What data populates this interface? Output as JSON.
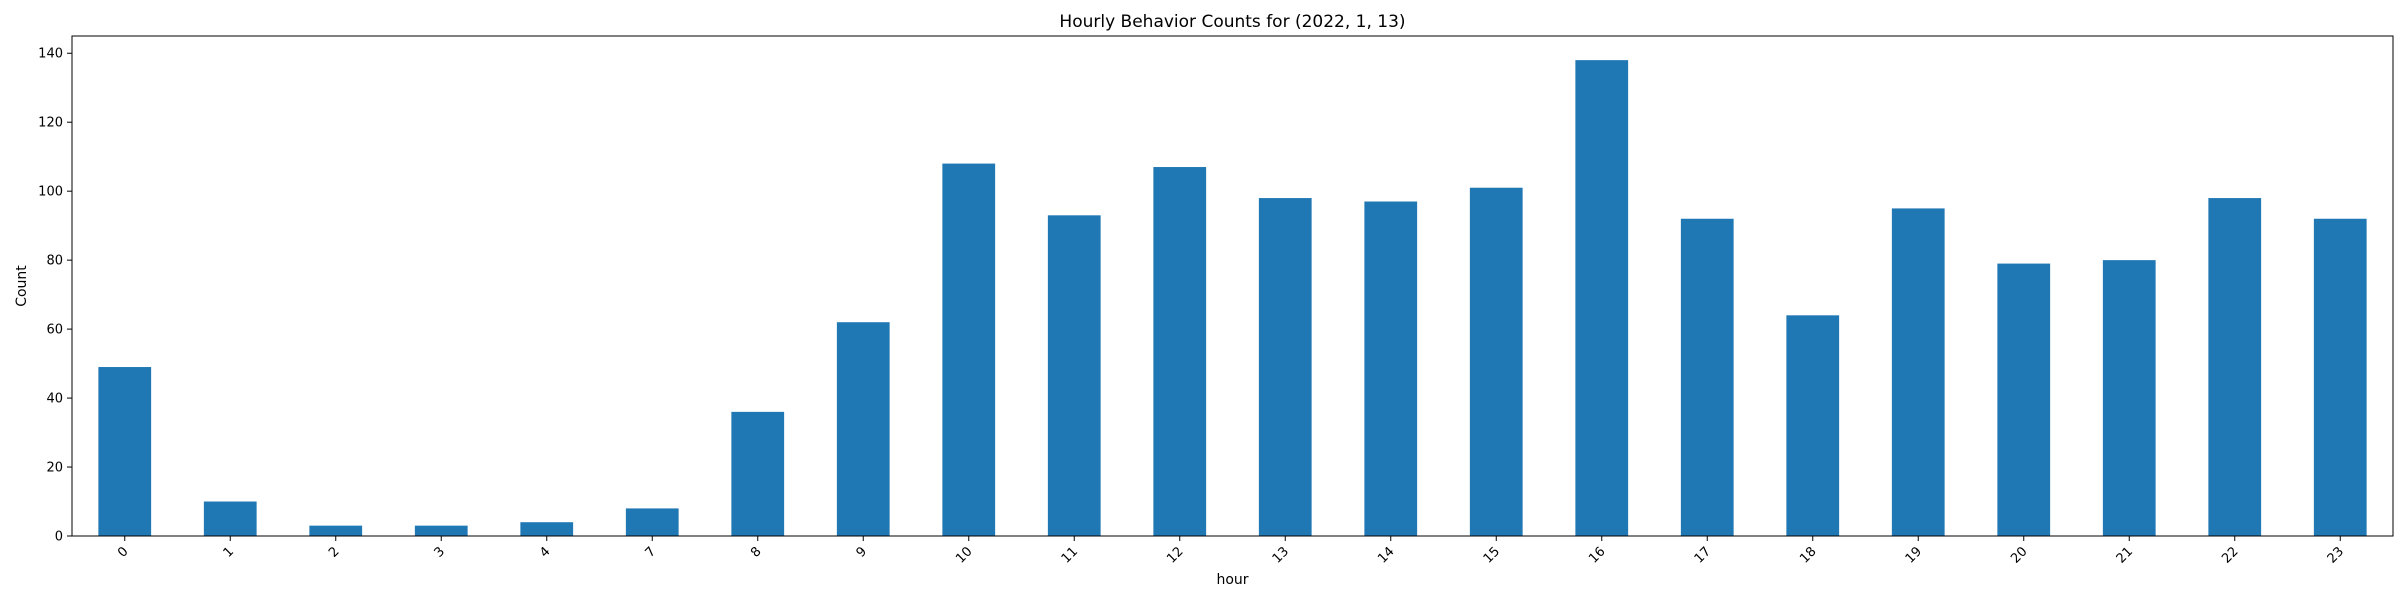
{
  "chart_data": {
    "type": "bar",
    "title": "Hourly Behavior Counts for (2022, 1, 13)",
    "xlabel": "hour",
    "ylabel": "Count",
    "categories": [
      "0",
      "1",
      "2",
      "3",
      "4",
      "7",
      "8",
      "9",
      "10",
      "11",
      "12",
      "13",
      "14",
      "15",
      "16",
      "17",
      "18",
      "19",
      "20",
      "21",
      "22",
      "23"
    ],
    "values": [
      49,
      10,
      3,
      3,
      4,
      8,
      36,
      62,
      108,
      93,
      107,
      98,
      97,
      101,
      138,
      92,
      64,
      95,
      79,
      80,
      98,
      92
    ],
    "ylim": [
      0,
      145
    ],
    "yticks": [
      "0",
      "20",
      "40",
      "60",
      "80",
      "100",
      "120",
      "140"
    ],
    "bar_color": "#1f77b4",
    "grid": false,
    "legend": "none",
    "xtick_rotation": 45
  }
}
